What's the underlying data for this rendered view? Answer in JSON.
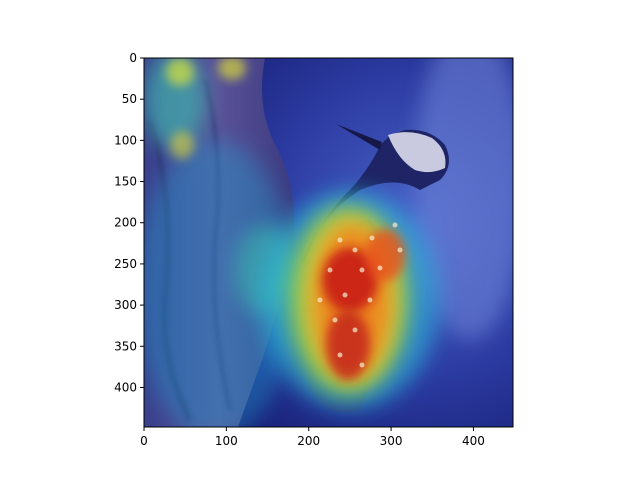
{
  "figure": {
    "type": "image-heatmap-overlay",
    "colormap": "jet",
    "subject_icon": "woodpecker-photo",
    "x_axis": {
      "ticks": [
        0,
        100,
        200,
        300,
        400
      ],
      "range": [
        0,
        448
      ]
    },
    "y_axis": {
      "ticks": [
        0,
        50,
        100,
        150,
        200,
        250,
        300,
        350,
        400
      ],
      "range": [
        0,
        448
      ]
    }
  }
}
